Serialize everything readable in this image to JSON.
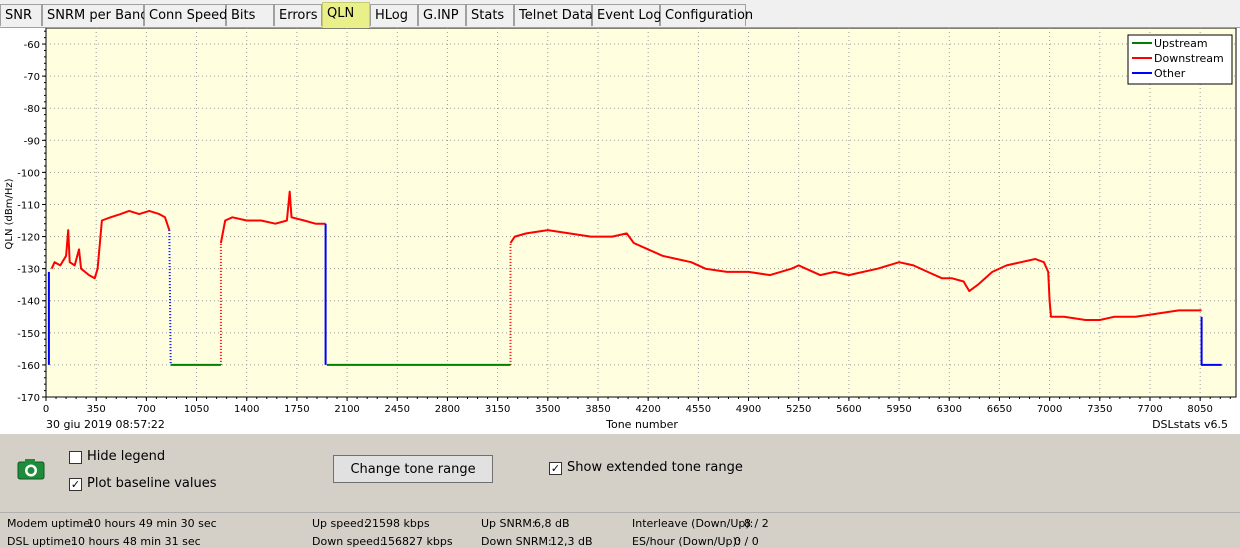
{
  "tabs": [
    {
      "label": "SNR",
      "active": false
    },
    {
      "label": "SNRM per Band",
      "active": false
    },
    {
      "label": "Conn Speed",
      "active": false
    },
    {
      "label": "Bits",
      "active": false
    },
    {
      "label": "Errors",
      "active": false
    },
    {
      "label": "QLN",
      "active": true
    },
    {
      "label": "HLog",
      "active": false
    },
    {
      "label": "G.INP",
      "active": false
    },
    {
      "label": "Stats",
      "active": false
    },
    {
      "label": "Telnet Data",
      "active": false
    },
    {
      "label": "Event Log",
      "active": false
    },
    {
      "label": "Configuration",
      "active": false
    }
  ],
  "chart": {
    "timestamp": "30 giu 2019 08:57:22",
    "version": "DSLstats v6.5"
  },
  "chart_data": {
    "type": "line",
    "xlabel": "Tone number",
    "ylabel": "QLN (dBm/Hz)",
    "xlim": [
      0,
      8300
    ],
    "ylim": [
      -170,
      -55
    ],
    "x_ticks": [
      0,
      350,
      700,
      1050,
      1400,
      1750,
      2100,
      2450,
      2800,
      3150,
      3500,
      3850,
      4200,
      4550,
      4900,
      5250,
      5600,
      5950,
      6300,
      6650,
      7000,
      7350,
      7700,
      8050
    ],
    "y_ticks": [
      -60,
      -70,
      -80,
      -90,
      -100,
      -110,
      -120,
      -130,
      -140,
      -150,
      -160,
      -170
    ],
    "grid": true,
    "legend_position": "top-right",
    "series": [
      {
        "name": "Upstream",
        "color": "#008000",
        "segments": [
          [
            [
              870,
              -160
            ],
            [
              1220,
              -160
            ]
          ],
          [
            [
              1960,
              -160
            ],
            [
              3240,
              -160
            ]
          ]
        ]
      },
      {
        "name": "Downstream",
        "color": "#ff0000",
        "segments": [
          [
            [
              40,
              -130
            ],
            [
              60,
              -128
            ],
            [
              100,
              -129
            ],
            [
              140,
              -126
            ],
            [
              155,
              -118
            ],
            [
              165,
              -128
            ],
            [
              200,
              -129
            ],
            [
              230,
              -124
            ],
            [
              245,
              -130
            ],
            [
              300,
              -132
            ],
            [
              340,
              -133
            ],
            [
              360,
              -130
            ],
            [
              390,
              -115
            ],
            [
              450,
              -114
            ],
            [
              520,
              -113
            ],
            [
              580,
              -112
            ],
            [
              650,
              -113
            ],
            [
              720,
              -112
            ],
            [
              790,
              -113
            ],
            [
              830,
              -114
            ],
            [
              860,
              -118
            ]
          ],
          [
            [
              1220,
              -122
            ],
            [
              1250,
              -115
            ],
            [
              1300,
              -114
            ],
            [
              1400,
              -115
            ],
            [
              1500,
              -115
            ],
            [
              1600,
              -116
            ],
            [
              1680,
              -115
            ],
            [
              1700,
              -106
            ],
            [
              1712,
              -114
            ],
            [
              1800,
              -115
            ],
            [
              1880,
              -116
            ],
            [
              1950,
              -116
            ]
          ],
          [
            [
              3240,
              -122
            ],
            [
              3270,
              -120
            ],
            [
              3350,
              -119
            ],
            [
              3500,
              -118
            ],
            [
              3650,
              -119
            ],
            [
              3800,
              -120
            ],
            [
              3950,
              -120
            ],
            [
              4050,
              -119
            ],
            [
              4100,
              -122
            ],
            [
              4200,
              -124
            ],
            [
              4300,
              -126
            ],
            [
              4400,
              -127
            ],
            [
              4500,
              -128
            ],
            [
              4600,
              -130
            ],
            [
              4750,
              -131
            ],
            [
              4900,
              -131
            ],
            [
              5050,
              -132
            ],
            [
              5200,
              -130
            ],
            [
              5250,
              -129
            ],
            [
              5300,
              -130
            ],
            [
              5400,
              -132
            ],
            [
              5500,
              -131
            ],
            [
              5600,
              -132
            ],
            [
              5700,
              -131
            ],
            [
              5800,
              -130
            ],
            [
              5950,
              -128
            ],
            [
              6050,
              -129
            ],
            [
              6150,
              -131
            ],
            [
              6250,
              -133
            ],
            [
              6320,
              -133
            ],
            [
              6400,
              -134
            ],
            [
              6440,
              -137
            ],
            [
              6500,
              -135
            ],
            [
              6600,
              -131
            ],
            [
              6700,
              -129
            ],
            [
              6800,
              -128
            ],
            [
              6900,
              -127
            ],
            [
              6960,
              -128
            ],
            [
              6990,
              -131
            ],
            [
              7000,
              -140
            ],
            [
              7010,
              -145
            ],
            [
              7100,
              -145
            ],
            [
              7250,
              -146
            ],
            [
              7350,
              -146
            ],
            [
              7450,
              -145
            ],
            [
              7600,
              -145
            ],
            [
              7750,
              -144
            ],
            [
              7900,
              -143
            ],
            [
              8000,
              -143
            ],
            [
              8060,
              -143
            ]
          ]
        ]
      },
      {
        "name": "Other",
        "color": "#0000ff",
        "segments": [
          [
            [
              20,
              -160
            ],
            [
              20,
              -131
            ]
          ],
          [
            [
              1950,
              -160
            ],
            [
              1950,
              -116
            ]
          ],
          [
            [
              8060,
              -145
            ],
            [
              8060,
              -160
            ],
            [
              8200,
              -160
            ]
          ]
        ]
      }
    ],
    "connectors": [
      {
        "color": "#0000ff",
        "points": [
          [
            860,
            -118
          ],
          [
            870,
            -160
          ]
        ]
      },
      {
        "color": "#ff0000",
        "points": [
          [
            1220,
            -160
          ],
          [
            1220,
            -122
          ]
        ]
      },
      {
        "color": "#ff0000",
        "points": [
          [
            3240,
            -160
          ],
          [
            3240,
            -122
          ]
        ]
      }
    ]
  },
  "panel": {
    "hide_legend": {
      "label": "Hide legend",
      "checked": false
    },
    "plot_baseline": {
      "label": "Plot baseline values",
      "checked": true
    },
    "change_range_label": "Change tone range",
    "extended_range": {
      "label": "Show extended tone range",
      "checked": true
    }
  },
  "status": {
    "modem_uptime_label": "Modem uptime:",
    "modem_uptime": "10 hours 49 min 30 sec",
    "dsl_uptime_label": "DSL uptime:",
    "dsl_uptime": "10 hours 48 min 31 sec",
    "up_speed_label": "Up speed:",
    "up_speed": "21598 kbps",
    "down_speed_label": "Down speed:",
    "down_speed": "156827 kbps",
    "up_snrm_label": "Up SNRM:",
    "up_snrm": "6,8 dB",
    "down_snrm_label": "Down SNRM:",
    "down_snrm": "12,3 dB",
    "interleave_label": "Interleave (Down/Up):",
    "interleave": "8 / 2",
    "es_label": "ES/hour (Down/Up):",
    "es": "0 / 0"
  }
}
